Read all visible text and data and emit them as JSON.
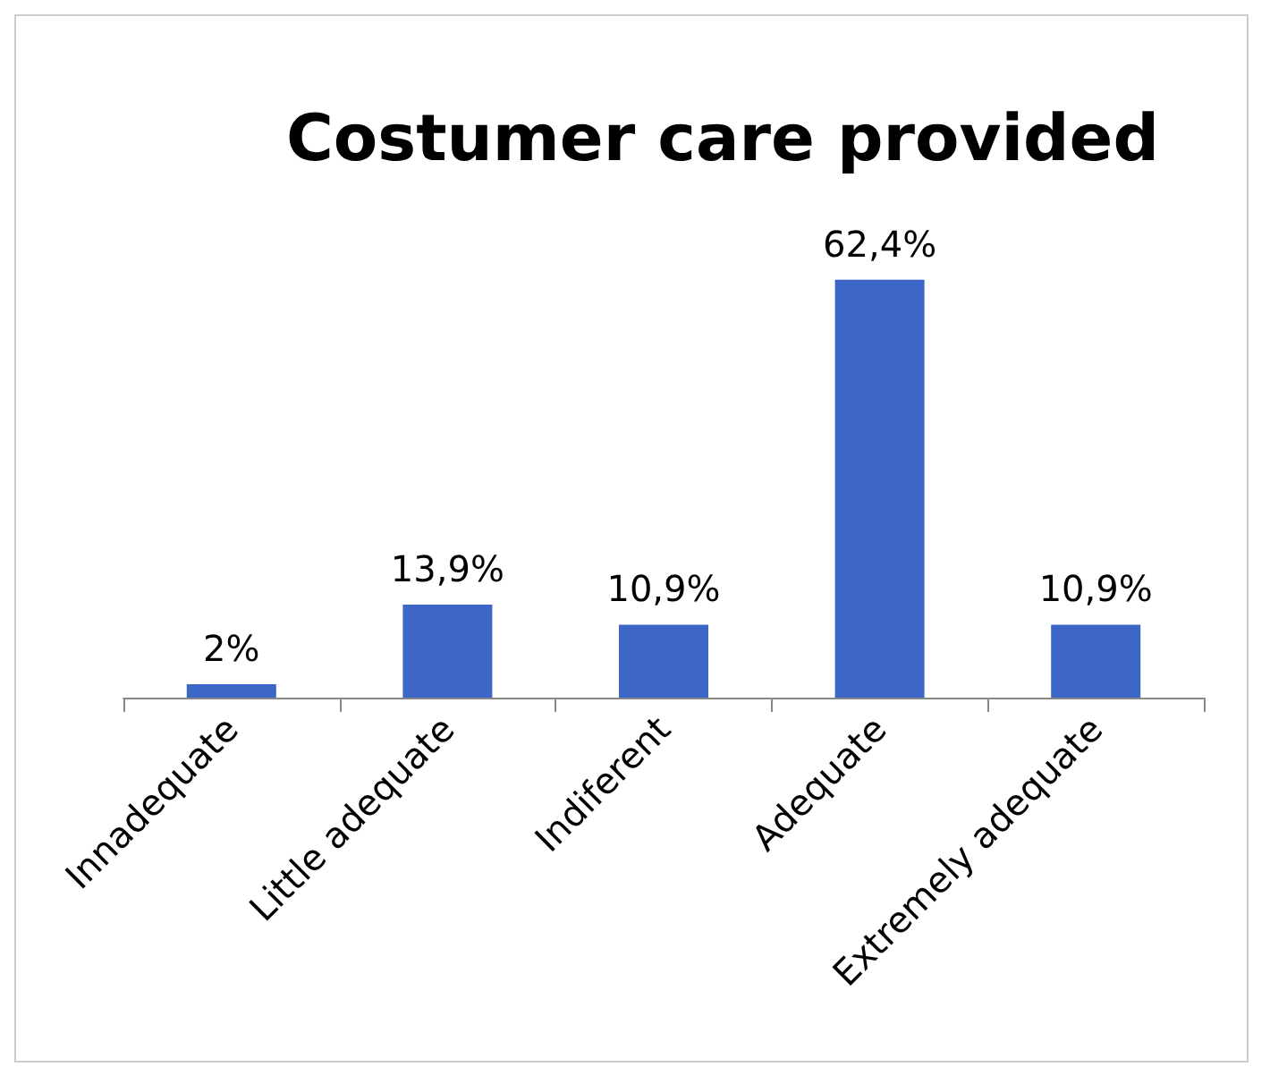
{
  "chart_data": {
    "type": "bar",
    "title": "Costumer care provided",
    "categories": [
      "Innadequate",
      "Little adequate",
      "Indiferent",
      "Adequate",
      "Extremely adequate"
    ],
    "values": [
      2,
      13.9,
      10.9,
      62.4,
      10.9
    ],
    "value_labels": [
      "2%",
      "13,9%",
      "10,9%",
      "62,4%",
      "10,9%"
    ],
    "color": "#3c67c6"
  }
}
